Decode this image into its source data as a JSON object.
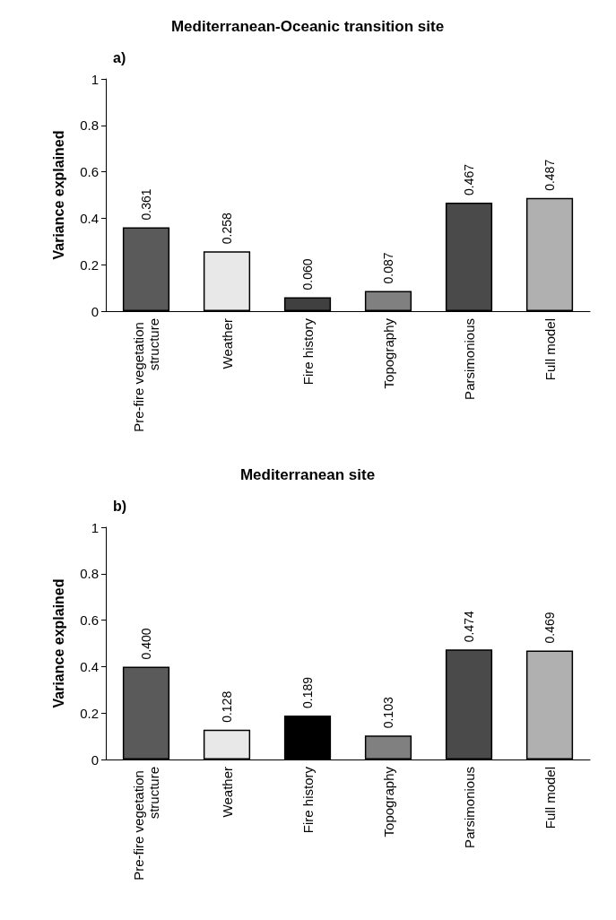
{
  "chart_data": [
    {
      "type": "bar",
      "title": "Mediterranean-Oceanic transition site",
      "annotations": [
        "a)"
      ],
      "ylabel": "Variance explained",
      "categories": [
        "Pre-fire vegetation structure",
        "Weather",
        "Fire history",
        "Topography",
        "Parsimonious",
        "Full model"
      ],
      "values": [
        0.361,
        0.258,
        0.06,
        0.087,
        0.467,
        0.487
      ],
      "value_labels": [
        "0.361",
        "0.258",
        "0.060",
        "0.087",
        "0.467",
        "0.487"
      ],
      "colors": [
        "#5a5a5a",
        "#e8e8e8",
        "#404040",
        "#808080",
        "#4a4a4a",
        "#b0b0b0"
      ],
      "ylim": [
        0,
        1
      ],
      "yticks": [
        0,
        0.2,
        0.4,
        0.6,
        0.8,
        1
      ]
    },
    {
      "type": "bar",
      "title": "Mediterranean site",
      "annotations": [
        "b)"
      ],
      "ylabel": "Variance explained",
      "categories": [
        "Pre-fire vegetation structure",
        "Weather",
        "Fire history",
        "Topography",
        "Parsimonious",
        "Full model"
      ],
      "values": [
        0.4,
        0.128,
        0.189,
        0.103,
        0.474,
        0.469
      ],
      "value_labels": [
        "0.400",
        "0.128",
        "0.189",
        "0.103",
        "0.474",
        "0.469"
      ],
      "colors": [
        "#5a5a5a",
        "#e8e8e8",
        "#000000",
        "#808080",
        "#4a4a4a",
        "#b0b0b0"
      ],
      "ylim": [
        0,
        1
      ],
      "yticks": [
        0,
        0.2,
        0.4,
        0.6,
        0.8,
        1
      ]
    }
  ]
}
